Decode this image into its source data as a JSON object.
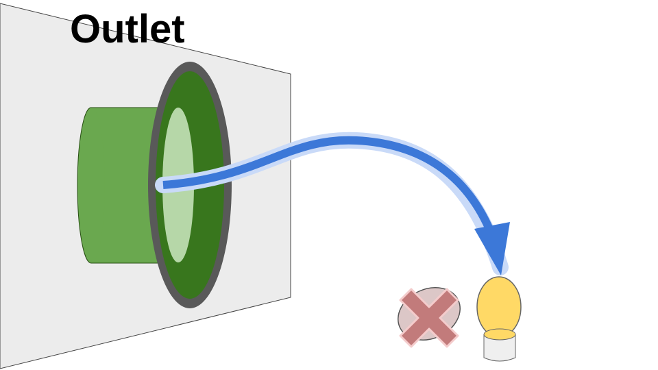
{
  "title": "Outlet",
  "colors": {
    "background": "#ffffff",
    "wall_fill": "#ececec",
    "wall_stroke": "#444444",
    "pipe_body": "#6aa84f",
    "pipe_rim": "#595959",
    "pipe_inner": "#38761d",
    "pipe_opening": "#b6d7a8",
    "flow_arrow": "#3c78d8",
    "flow_arrow_glow": "#c9daf8",
    "rejected_egg_fill": "#dcc7c7",
    "cross_fill": "#c27b7b",
    "cross_glow": "#f4cccc",
    "egg_fill": "#ffd966",
    "egg_glow": "#fff2cc",
    "egg_cup_fill": "#efefef"
  },
  "icons": {
    "rejected": "red-x-icon",
    "accepted": "egg-in-cup-icon",
    "flow": "curved-arrow-icon"
  }
}
